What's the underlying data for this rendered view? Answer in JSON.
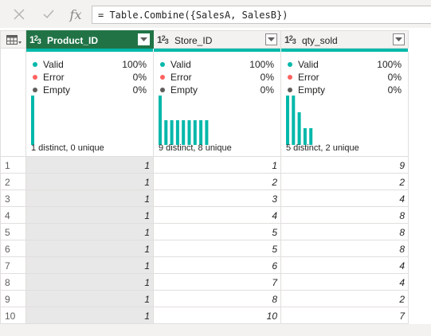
{
  "formula_bar": {
    "cancel_icon": "x-icon",
    "commit_icon": "check-icon",
    "fx_label": "fx",
    "formula": "= Table.Combine({SalesA, SalesB})"
  },
  "columns": [
    {
      "name": "Product_ID",
      "type_label": "123",
      "selected": true,
      "quality": {
        "valid": "100%",
        "error": "0%",
        "empty": "0%"
      },
      "distribution": "1 distinct, 0 unique",
      "histogram": [
        10
      ]
    },
    {
      "name": "Store_ID",
      "type_label": "123",
      "selected": false,
      "quality": {
        "valid": "100%",
        "error": "0%",
        "empty": "0%"
      },
      "distribution": "9 distinct, 8 unique",
      "histogram": [
        2,
        1,
        1,
        1,
        1,
        1,
        1,
        1,
        1
      ]
    },
    {
      "name": "qty_sold",
      "type_label": "123",
      "selected": false,
      "quality": {
        "valid": "100%",
        "error": "0%",
        "empty": "0%"
      },
      "distribution": "5 distinct, 2 unique",
      "histogram": [
        3,
        3,
        2,
        1,
        1
      ]
    }
  ],
  "quality_labels": {
    "valid": "Valid",
    "error": "Error",
    "empty": "Empty"
  },
  "quality_colors": {
    "valid": "#01b8aa",
    "error": "#fd625e",
    "empty": "#605e5c"
  },
  "rows": [
    {
      "n": "1",
      "cells": [
        "1",
        "1",
        "9"
      ]
    },
    {
      "n": "2",
      "cells": [
        "1",
        "2",
        "2"
      ]
    },
    {
      "n": "3",
      "cells": [
        "1",
        "3",
        "4"
      ]
    },
    {
      "n": "4",
      "cells": [
        "1",
        "4",
        "8"
      ]
    },
    {
      "n": "5",
      "cells": [
        "1",
        "5",
        "8"
      ]
    },
    {
      "n": "6",
      "cells": [
        "1",
        "5",
        "8"
      ]
    },
    {
      "n": "7",
      "cells": [
        "1",
        "6",
        "4"
      ]
    },
    {
      "n": "8",
      "cells": [
        "1",
        "7",
        "4"
      ]
    },
    {
      "n": "9",
      "cells": [
        "1",
        "8",
        "2"
      ]
    },
    {
      "n": "10",
      "cells": [
        "1",
        "10",
        "7"
      ]
    }
  ]
}
